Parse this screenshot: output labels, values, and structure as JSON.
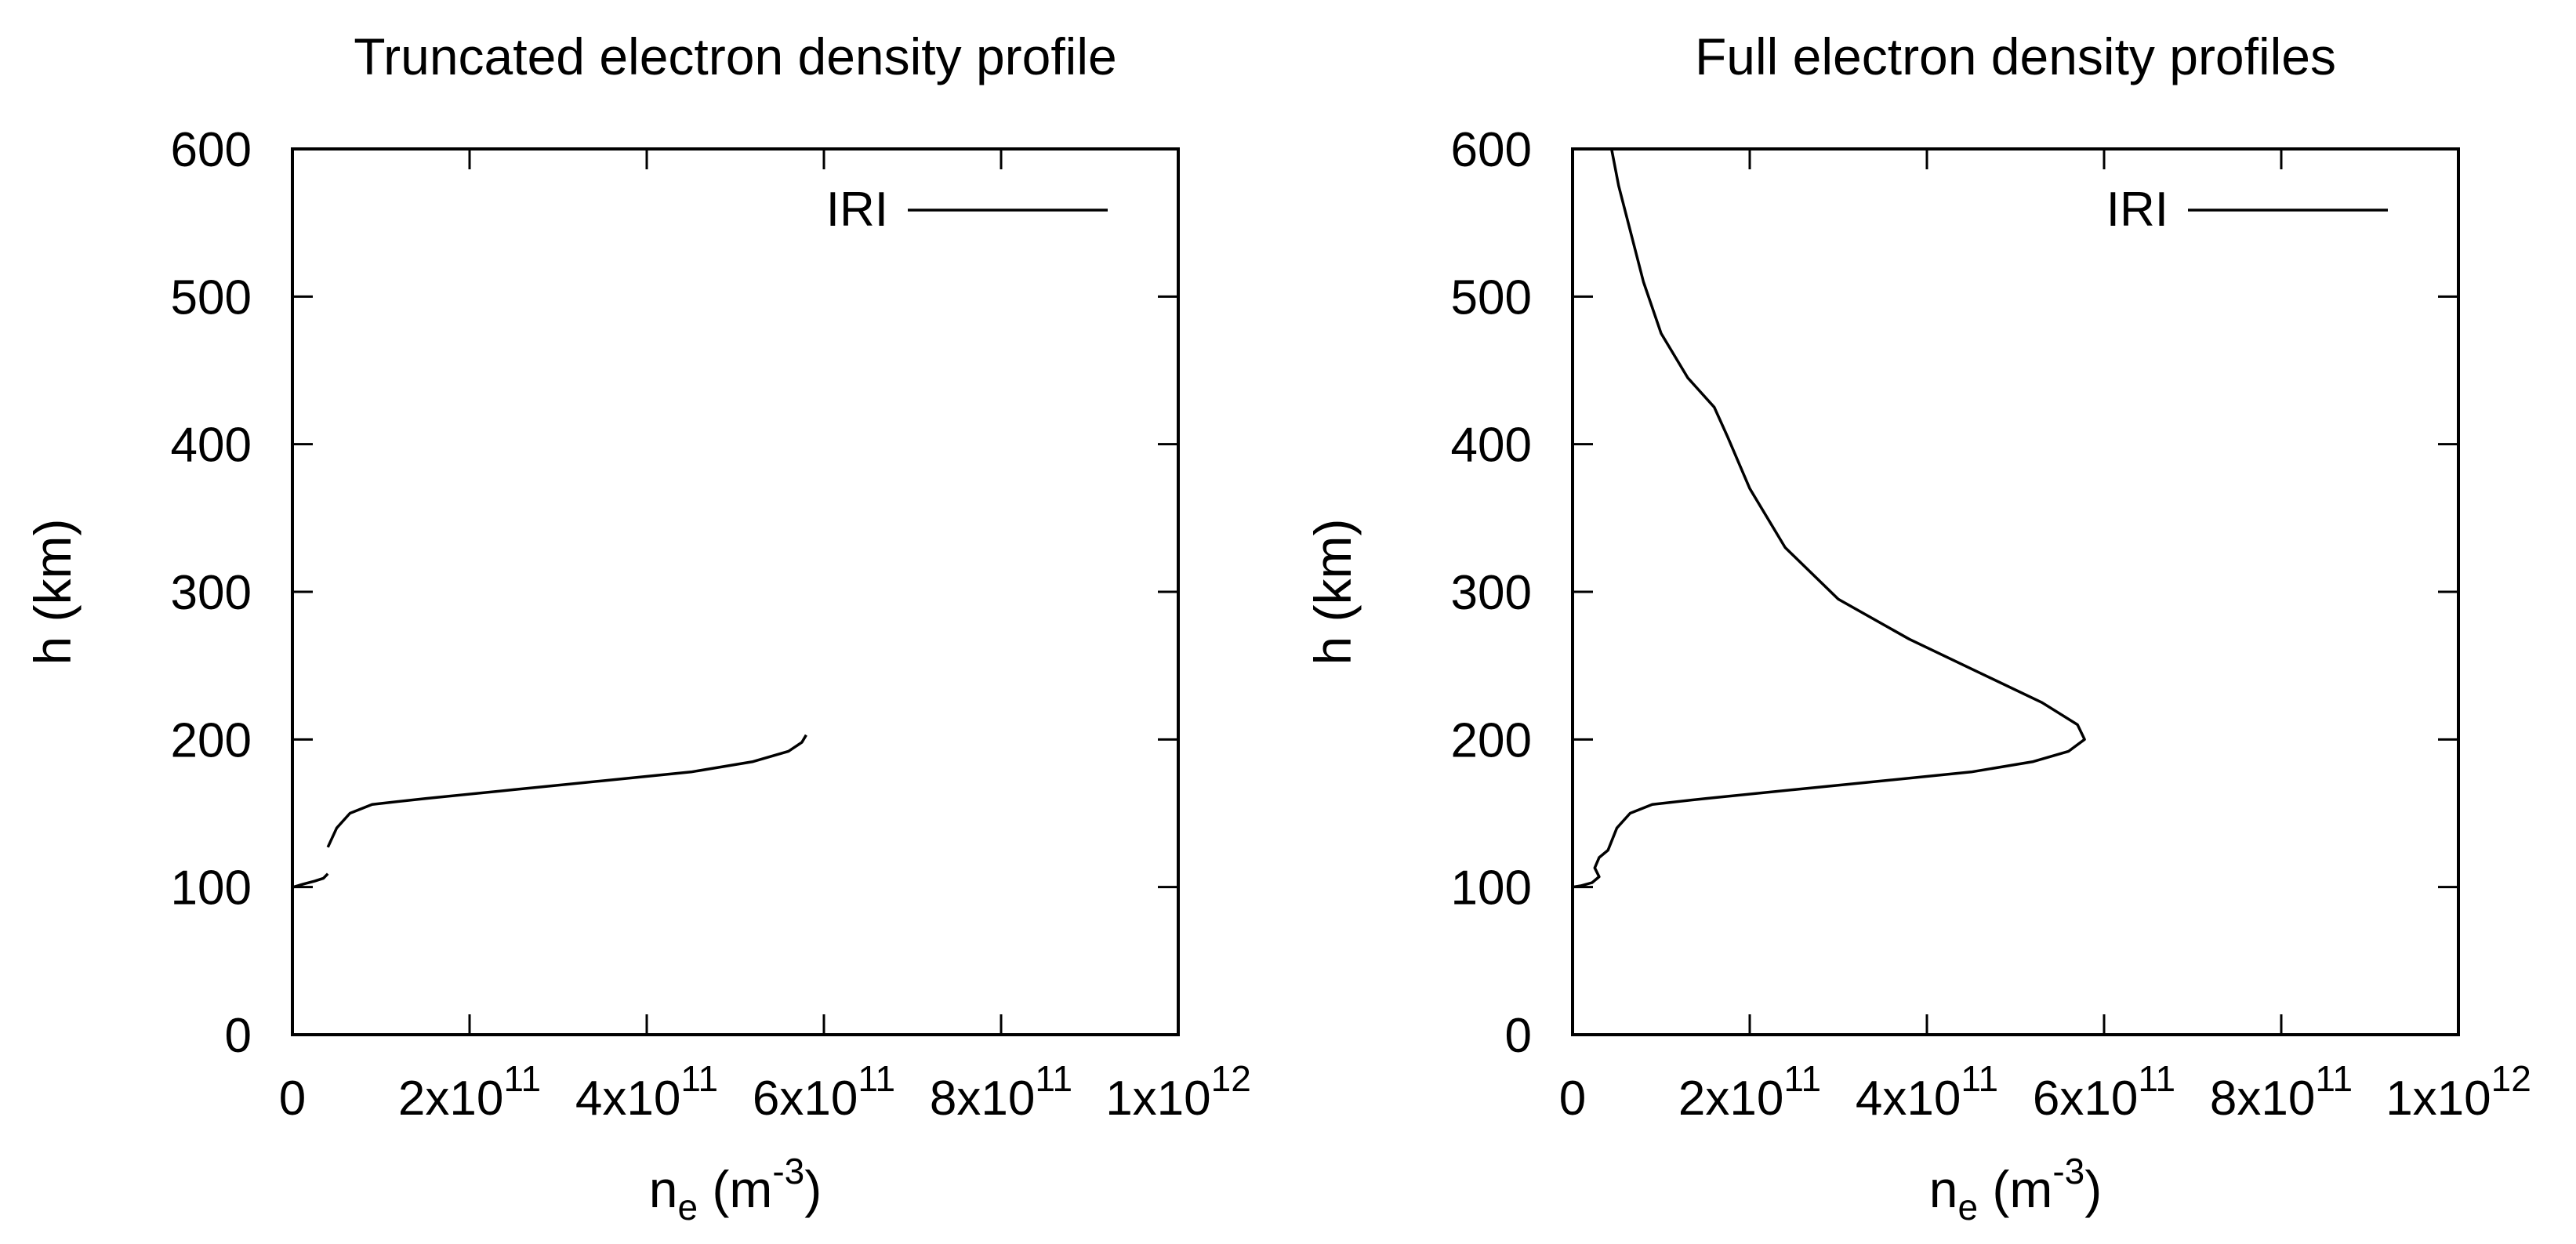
{
  "chart_data": [
    {
      "type": "line",
      "title": "Truncated electron density profile",
      "xlabel": {
        "base": "n",
        "sub": "e",
        "unit_open": " (m",
        "exp": "-3",
        "unit_close": ")"
      },
      "ylabel": "h (km)",
      "xlim": [
        0,
        1000000000000.0
      ],
      "ylim": [
        0,
        600
      ],
      "xticks": [
        {
          "value": 0,
          "mantissa": "0",
          "exp": ""
        },
        {
          "value": 200000000000.0,
          "mantissa": "2x10",
          "exp": "11"
        },
        {
          "value": 400000000000.0,
          "mantissa": "4x10",
          "exp": "11"
        },
        {
          "value": 600000000000.0,
          "mantissa": "6x10",
          "exp": "11"
        },
        {
          "value": 800000000000.0,
          "mantissa": "8x10",
          "exp": "11"
        },
        {
          "value": 1000000000000.0,
          "mantissa": "1x10",
          "exp": "12"
        }
      ],
      "yticks": [
        {
          "value": 0,
          "label": "0"
        },
        {
          "value": 100,
          "label": "100"
        },
        {
          "value": 200,
          "label": "200"
        },
        {
          "value": 300,
          "label": "300"
        },
        {
          "value": 400,
          "label": "400"
        },
        {
          "value": 500,
          "label": "500"
        },
        {
          "value": 600,
          "label": "600"
        }
      ],
      "legend": "top-right",
      "series": [
        {
          "name": "IRI",
          "color": "#000000",
          "segments": [
            [
              [
                1000000000.0,
                100
              ],
              [
                12000000000.0,
                102
              ],
              [
                25000000000.0,
                104
              ],
              [
                35000000000.0,
                106
              ],
              [
                40000000000.0,
                109
              ]
            ],
            [
              [
                40000000000.0,
                127
              ],
              [
                50000000000.0,
                140
              ],
              [
                65000000000.0,
                150
              ],
              [
                90000000000.0,
                156
              ],
              [
                150000000000.0,
                160
              ],
              [
                250000000000.0,
                166
              ],
              [
                350000000000.0,
                172
              ],
              [
                450000000000.0,
                178
              ],
              [
                520000000000.0,
                185
              ],
              [
                560000000000.0,
                192
              ],
              [
                575000000000.0,
                198
              ],
              [
                580000000000.0,
                203
              ]
            ]
          ]
        }
      ]
    },
    {
      "type": "line",
      "title": "Full electron density profiles",
      "xlabel": {
        "base": "n",
        "sub": "e",
        "unit_open": " (m",
        "exp": "-3",
        "unit_close": ")"
      },
      "ylabel": "h (km)",
      "xlim": [
        0,
        1000000000000.0
      ],
      "ylim": [
        0,
        600
      ],
      "xticks": [
        {
          "value": 0,
          "mantissa": "0",
          "exp": ""
        },
        {
          "value": 200000000000.0,
          "mantissa": "2x10",
          "exp": "11"
        },
        {
          "value": 400000000000.0,
          "mantissa": "4x10",
          "exp": "11"
        },
        {
          "value": 600000000000.0,
          "mantissa": "6x10",
          "exp": "11"
        },
        {
          "value": 800000000000.0,
          "mantissa": "8x10",
          "exp": "11"
        },
        {
          "value": 1000000000000.0,
          "mantissa": "1x10",
          "exp": "12"
        }
      ],
      "yticks": [
        {
          "value": 0,
          "label": "0"
        },
        {
          "value": 100,
          "label": "100"
        },
        {
          "value": 200,
          "label": "200"
        },
        {
          "value": 300,
          "label": "300"
        },
        {
          "value": 400,
          "label": "400"
        },
        {
          "value": 500,
          "label": "500"
        },
        {
          "value": 600,
          "label": "600"
        }
      ],
      "legend": "top-right",
      "series": [
        {
          "name": "IRI",
          "color": "#000000",
          "segments": [
            [
              [
                0,
                100
              ],
              [
                10000000000.0,
                101
              ],
              [
                22000000000.0,
                103
              ],
              [
                30000000000.0,
                107
              ],
              [
                25000000000.0,
                113
              ],
              [
                30000000000.0,
                120
              ],
              [
                40000000000.0,
                125
              ],
              [
                50000000000.0,
                140
              ],
              [
                65000000000.0,
                150
              ],
              [
                90000000000.0,
                156
              ],
              [
                150000000000.0,
                160
              ],
              [
                250000000000.0,
                166
              ],
              [
                350000000000.0,
                172
              ],
              [
                450000000000.0,
                178
              ],
              [
                520000000000.0,
                185
              ],
              [
                560000000000.0,
                192
              ],
              [
                578000000000.0,
                200
              ],
              [
                570000000000.0,
                210
              ],
              [
                530000000000.0,
                225
              ],
              [
                460000000000.0,
                245
              ],
              [
                380000000000.0,
                268
              ],
              [
                300000000000.0,
                295
              ],
              [
                240000000000.0,
                330
              ],
              [
                200000000000.0,
                370
              ],
              [
                175000000000.0,
                405
              ],
              [
                160000000000.0,
                425
              ],
              [
                130000000000.0,
                445
              ],
              [
                100000000000.0,
                475
              ],
              [
                80000000000.0,
                510
              ],
              [
                65000000000.0,
                545
              ],
              [
                52000000000.0,
                575
              ],
              [
                44000000000.0,
                600
              ]
            ]
          ]
        }
      ]
    }
  ]
}
